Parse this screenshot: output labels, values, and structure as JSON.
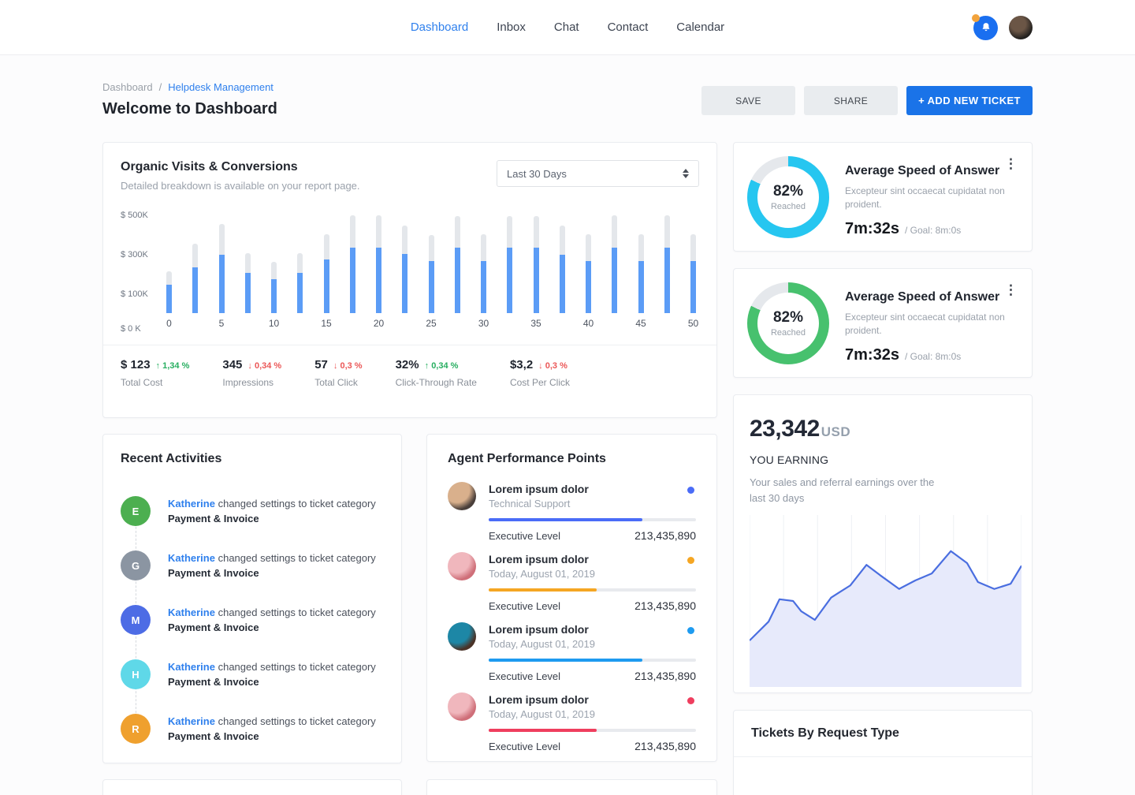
{
  "colors": {
    "accent_blue": "#2f80ed",
    "button_blue": "#1a73e8",
    "bar_blue": "#5b9cf6",
    "bar_track": "#e4e7eb",
    "positive_green": "#27ae60",
    "negative_red": "#eb5757",
    "donut_cyan": "#26c6f0",
    "donut_green": "#47c16e",
    "line_blue": "#4a6ee0",
    "line_fill": "#e7eafb"
  },
  "topbar": {
    "nav": [
      {
        "label": "Dashboard",
        "active": true
      },
      {
        "label": "Inbox",
        "active": false
      },
      {
        "label": "Chat",
        "active": false
      },
      {
        "label": "Contact",
        "active": false
      },
      {
        "label": "Calendar",
        "active": false
      }
    ]
  },
  "header": {
    "breadcrumb": [
      "Dashboard",
      "Helpdesk Management"
    ],
    "breadcrumb_separator": "/",
    "title": "Welcome to Dashboard",
    "save_label": "SAVE",
    "share_label": "SHARE",
    "add_ticket_label": "+ ADD NEW TICKET"
  },
  "organic": {
    "title": "Organic Visits & Conversions",
    "subtitle": "Detailed breakdown is available on your report page.",
    "period": "Last 30 Days",
    "stats": [
      {
        "value": "$ 123",
        "delta": "1,34 %",
        "direction": "up",
        "label": "Total Cost"
      },
      {
        "value": "345",
        "delta": "0,34 %",
        "direction": "down",
        "label": "Impressions"
      },
      {
        "value": "57",
        "delta": "0,3 %",
        "direction": "down",
        "label": "Total Click"
      },
      {
        "value": "32%",
        "delta": "0,34 %",
        "direction": "up",
        "label": "Click-Through Rate"
      },
      {
        "value": "$3,2",
        "delta": "0,3 %",
        "direction": "down",
        "label": "Cost Per Click"
      }
    ]
  },
  "recent": {
    "title": "Recent Activities",
    "items": [
      {
        "initial": "E",
        "color": "#4caf50",
        "user": "Katherine",
        "action": "changed settings to ticket category",
        "target": "Payment & Invoice"
      },
      {
        "initial": "G",
        "color": "#8b95a2",
        "user": "Katherine",
        "action": "changed settings to ticket category",
        "target": "Payment & Invoice"
      },
      {
        "initial": "M",
        "color": "#4d6ce5",
        "user": "Katherine",
        "action": "changed settings to ticket category",
        "target": "Payment & Invoice"
      },
      {
        "initial": "H",
        "color": "#5fd8e8",
        "user": "Katherine",
        "action": "changed settings to ticket category",
        "target": "Payment & Invoice"
      },
      {
        "initial": "R",
        "color": "#efa02e",
        "user": "Katherine",
        "action": "changed settings to ticket category",
        "target": "Payment & Invoice"
      }
    ]
  },
  "agents": {
    "title": "Agent Performance Points",
    "rows": [
      {
        "name": "Lorem ipsum dolor",
        "sub": "Technical Support",
        "dot_color": "#4a6cf7",
        "progress": 74,
        "level": "Executive Level",
        "points": "213,435,890",
        "avatar_colors": [
          "#d9b08c",
          "#4a3f3a"
        ]
      },
      {
        "name": "Lorem ipsum dolor",
        "sub": "Today, August 01, 2019",
        "dot_color": "#f5a623",
        "progress": 52,
        "level": "Executive Level",
        "points": "213,435,890",
        "avatar_colors": [
          "#f0b7bd",
          "#cf6f79"
        ]
      },
      {
        "name": "Lorem ipsum dolor",
        "sub": "Today, August 01, 2019",
        "dot_color": "#1e9bf0",
        "progress": 74,
        "level": "Executive Level",
        "points": "213,435,890",
        "avatar_colors": [
          "#1d87a6",
          "#4a3328"
        ]
      },
      {
        "name": "Lorem ipsum dolor",
        "sub": "Today, August 01, 2019",
        "dot_color": "#ef3e5e",
        "progress": 52,
        "level": "Executive Level",
        "points": "213,435,890",
        "avatar_colors": [
          "#f0b7bd",
          "#cf6f79"
        ]
      }
    ]
  },
  "speed_cards": [
    {
      "percent": "82%",
      "percent_value": 82,
      "reached_label": "Reached",
      "title": "Average Speed of Answer",
      "menu_icon": "kebab-menu-icon",
      "desc": "Excepteur sint occaecat cupidatat non proident.",
      "time": "7m:32s",
      "goal": "/ Goal: 8m:0s",
      "color": "#26c6f0"
    },
    {
      "percent": "82%",
      "percent_value": 82,
      "reached_label": "Reached",
      "title": "Average Speed of Answer",
      "menu_icon": "kebab-menu-icon",
      "desc": "Excepteur sint occaecat cupidatat non proident.",
      "time": "7m:32s",
      "goal": "/ Goal: 8m:0s",
      "color": "#47c16e"
    }
  ],
  "earning": {
    "amount": "23,342",
    "currency": "USD",
    "label": "YOU EARNING",
    "desc": "Your sales and referral earnings over the last 30 days"
  },
  "tickets": {
    "title": "Tickets By Request Type"
  },
  "chart_data": [
    {
      "id": "organic_visits",
      "type": "bar",
      "title": "Organic Visits & Conversions",
      "x": [
        0,
        2.5,
        5,
        7.5,
        10,
        12.5,
        15,
        17.5,
        20,
        22.5,
        25,
        27.5,
        30,
        32.5,
        35,
        37.5,
        40,
        42.5,
        45,
        47.5,
        50
      ],
      "x_tick_labels": [
        "0",
        "5",
        "10",
        "15",
        "20",
        "25",
        "30",
        "35",
        "40",
        "45",
        "50"
      ],
      "y_ticks": [
        {
          "label": "$ 500K",
          "value": 500
        },
        {
          "label": "$ 300K",
          "value": 300
        },
        {
          "label": "$ 100K",
          "value": 100
        },
        {
          "label": "$ 0 K",
          "value": 0
        }
      ],
      "y_max": 520,
      "y_unit": "thousand USD",
      "series": [
        {
          "name": "total",
          "color": "#e4e7eb",
          "values": [
            210,
            350,
            450,
            305,
            260,
            305,
            400,
            495,
            495,
            445,
            395,
            490,
            400,
            490,
            490,
            445,
            400,
            495,
            400,
            495,
            400
          ]
        },
        {
          "name": "filled",
          "color": "#5b9cf6",
          "values": [
            145,
            230,
            295,
            205,
            170,
            205,
            270,
            330,
            330,
            300,
            265,
            330,
            265,
            330,
            330,
            295,
            265,
            330,
            265,
            330,
            265
          ]
        }
      ],
      "grid": false,
      "legend": false
    },
    {
      "id": "you_earning",
      "type": "area",
      "color": "#4a6ee0",
      "fill": "#e7eafb",
      "gridlines": 9,
      "x_range": [
        0,
        100
      ],
      "y_range": [
        0,
        100
      ],
      "points": [
        [
          0,
          27
        ],
        [
          7,
          38
        ],
        [
          11,
          51
        ],
        [
          16,
          50
        ],
        [
          19,
          44
        ],
        [
          24,
          39
        ],
        [
          30,
          52
        ],
        [
          33,
          55
        ],
        [
          37,
          59
        ],
        [
          43,
          71
        ],
        [
          48,
          65
        ],
        [
          55,
          57
        ],
        [
          61,
          62
        ],
        [
          67,
          66
        ],
        [
          74,
          79
        ],
        [
          80,
          72
        ],
        [
          84,
          61
        ],
        [
          90,
          57
        ],
        [
          96,
          60
        ],
        [
          100,
          70.5
        ]
      ]
    }
  ]
}
